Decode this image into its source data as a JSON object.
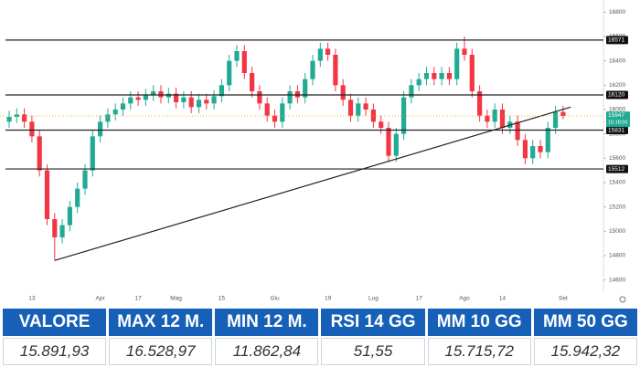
{
  "chart_data": {
    "type": "candlestick",
    "categories": [
      null,
      null,
      null,
      "13",
      null,
      null,
      null,
      null,
      null,
      null,
      null,
      null,
      "Apr",
      null,
      null,
      null,
      null,
      "17",
      null,
      null,
      null,
      null,
      "Mag",
      null,
      null,
      null,
      null,
      null,
      "15",
      null,
      null,
      null,
      null,
      null,
      null,
      "Giu",
      null,
      null,
      null,
      null,
      null,
      null,
      "19",
      null,
      null,
      null,
      null,
      null,
      "Lug",
      null,
      null,
      null,
      null,
      null,
      "17",
      null,
      null,
      null,
      null,
      null,
      "Ago",
      null,
      null,
      null,
      null,
      "14",
      null,
      null,
      null,
      null,
      null,
      null,
      null,
      "Set"
    ],
    "open": [
      15900,
      15940,
      15960,
      15900,
      15780,
      15500,
      15100,
      14950,
      15050,
      15200,
      15350,
      15500,
      15780,
      15900,
      15960,
      16000,
      16050,
      16100,
      16080,
      16120,
      16150,
      16100,
      16130,
      16060,
      16100,
      16020,
      16080,
      16050,
      16110,
      16200,
      16400,
      16480,
      16300,
      16150,
      16050,
      15950,
      15900,
      16050,
      16150,
      16100,
      16250,
      16400,
      16500,
      16450,
      16200,
      16080,
      15950,
      16050,
      16000,
      15900,
      15850,
      15620,
      15800,
      16100,
      16200,
      16250,
      16300,
      16250,
      16300,
      16250,
      16500,
      16450,
      16150,
      15950,
      15900,
      16000,
      15850,
      15900,
      15750,
      15600,
      15700,
      15650,
      15850,
      15980
    ],
    "high": [
      15990,
      16010,
      16010,
      15950,
      15830,
      15550,
      15150,
      15100,
      15250,
      15400,
      15550,
      15830,
      15950,
      16010,
      16050,
      16100,
      16150,
      16150,
      16170,
      16200,
      16200,
      16180,
      16180,
      16150,
      16150,
      16130,
      16130,
      16160,
      16250,
      16450,
      16530,
      16530,
      16350,
      16200,
      16100,
      16000,
      16100,
      16200,
      16200,
      16300,
      16450,
      16550,
      16550,
      16500,
      16250,
      16130,
      16100,
      16100,
      16050,
      15950,
      15900,
      15850,
      16150,
      16250,
      16300,
      16350,
      16350,
      16350,
      16350,
      16550,
      16600,
      16500,
      16200,
      16000,
      16050,
      16050,
      15950,
      15950,
      15800,
      15750,
      15750,
      15900,
      16030,
      16030
    ],
    "low": [
      15850,
      15890,
      15850,
      15730,
      15450,
      15050,
      14760,
      14900,
      15000,
      15150,
      15300,
      15450,
      15730,
      15850,
      15910,
      15950,
      16000,
      16030,
      16030,
      16070,
      16050,
      16050,
      16010,
      16010,
      15970,
      15970,
      16000,
      16000,
      16060,
      16150,
      16350,
      16250,
      16100,
      16000,
      15900,
      15850,
      15850,
      16000,
      16050,
      16050,
      16200,
      16350,
      16400,
      16150,
      16030,
      15900,
      15900,
      15950,
      15850,
      15800,
      15570,
      15570,
      15750,
      16050,
      16150,
      16200,
      16200,
      16200,
      16200,
      16200,
      16400,
      16100,
      15900,
      15850,
      15850,
      15800,
      15800,
      15700,
      15550,
      15550,
      15600,
      15600,
      15800,
      15920
    ],
    "close": [
      15940,
      15960,
      15900,
      15780,
      15500,
      15100,
      14950,
      15050,
      15200,
      15350,
      15500,
      15780,
      15900,
      15960,
      16000,
      16050,
      16100,
      16080,
      16120,
      16150,
      16100,
      16130,
      16060,
      16100,
      16020,
      16080,
      16050,
      16110,
      16200,
      16400,
      16480,
      16300,
      16150,
      16050,
      15950,
      15900,
      16050,
      16150,
      16100,
      16250,
      16400,
      16500,
      16450,
      16200,
      16080,
      15950,
      16050,
      16000,
      15900,
      15850,
      15620,
      15800,
      16100,
      16200,
      16250,
      16300,
      16250,
      16300,
      16250,
      16500,
      16450,
      16150,
      15950,
      15900,
      16000,
      15850,
      15900,
      15750,
      15600,
      15700,
      15650,
      15850,
      15980,
      15947
    ],
    "up_color": "#22ab94",
    "down_color": "#f23645",
    "ylim": [
      14500,
      16900
    ],
    "yticks": [
      14600,
      14800,
      15000,
      15200,
      15400,
      15600,
      15800,
      16000,
      16200,
      16400,
      16600,
      16800
    ],
    "levels": [
      16571,
      16120,
      15831,
      15512
    ],
    "trendline": {
      "x": [
        6,
        74
      ],
      "y": [
        14760,
        16020
      ]
    },
    "last_price": 15947,
    "last_time": "15:18:00",
    "last_color": "#22ab94",
    "price_line_color": "#f7a600"
  },
  "table": {
    "headers": [
      "VALORE",
      "MAX 12 M.",
      "MIN 12 M.",
      "RSI 14 GG",
      "MM 10 GG",
      "MM 50 GG"
    ],
    "values": [
      "15.891,93",
      "16.528,97",
      "11.862,84",
      "51,55",
      "15.715,72",
      "15.942,32"
    ]
  }
}
